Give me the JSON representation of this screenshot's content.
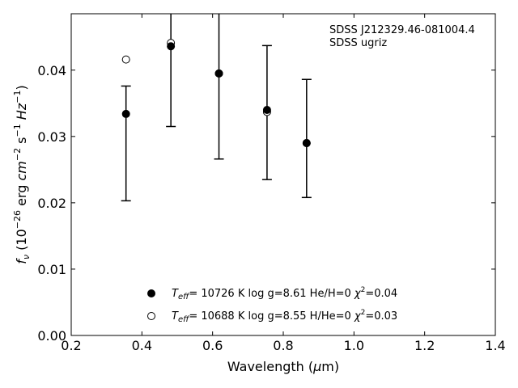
{
  "chart_data": {
    "type": "scatter",
    "xlabel_prefix": "Wavelength (",
    "xlabel_mu": "μ",
    "xlabel_suffix": "m)",
    "xlim": [
      0.2,
      1.4
    ],
    "ylim": [
      0.0,
      0.0485
    ],
    "x_ticks": [
      0.2,
      0.4,
      0.6,
      0.8,
      1.0,
      1.2,
      1.4
    ],
    "x_tick_labels": [
      "0.2",
      "0.4",
      "0.6",
      "0.8",
      "1.0",
      "1.2",
      "1.4"
    ],
    "y_ticks": [
      0.0,
      0.01,
      0.02,
      0.03,
      0.04
    ],
    "y_tick_labels": [
      "0.00",
      "0.01",
      "0.02",
      "0.03",
      "0.04"
    ],
    "ylabel": {
      "f": "f",
      "nu": "ν",
      "open": " (10",
      "exp26": "−26",
      "erg": " erg ",
      "cm": "cm",
      "exp2": "−2",
      "s": " s",
      "exp1a": "−1",
      "hz": " Hz",
      "exp1b": "−1",
      "close": ")"
    },
    "annotations": [
      "SDSS J212329.46-081004.4",
      "SDSS ugriz"
    ],
    "observed": [
      {
        "x": 0.355,
        "y": 0.0334,
        "yerr_low": 0.0203,
        "yerr_high": 0.0376
      },
      {
        "x": 0.482,
        "y": 0.0436,
        "yerr_low": 0.0315,
        "yerr_high": 0.054
      },
      {
        "x": 0.618,
        "y": 0.0395,
        "yerr_low": 0.0266,
        "yerr_high": 0.053
      },
      {
        "x": 0.754,
        "y": 0.034,
        "yerr_low": 0.0235,
        "yerr_high": 0.0437
      },
      {
        "x": 0.866,
        "y": 0.029,
        "yerr_low": 0.0208,
        "yerr_high": 0.0386
      }
    ],
    "series": [
      {
        "marker": "filled-circle",
        "x": [
          0.355,
          0.482,
          0.618,
          0.754,
          0.866
        ],
        "y": [
          0.0334,
          0.0436,
          0.0395,
          0.034,
          0.029
        ],
        "legend": {
          "teff": "T",
          "eff": "eff",
          "rest": "= 10726 K  log g=8.61  He/H=0  ",
          "chi": "χ",
          "sq": "2",
          "chival": "=0.04"
        }
      },
      {
        "marker": "open-circle",
        "x": [
          0.355,
          0.482,
          0.618,
          0.754,
          0.866
        ],
        "y": [
          0.0416,
          0.0441,
          0.0395,
          0.0337,
          0.029
        ],
        "legend": {
          "teff": "T",
          "eff": "eff",
          "rest": "= 10688 K  log g=8.55  H/He=0  ",
          "chi": "χ",
          "sq": "2",
          "chival": "=0.03"
        }
      }
    ],
    "legend_placement": "lower-center",
    "grid": false
  }
}
